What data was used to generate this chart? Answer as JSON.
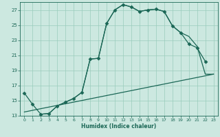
{
  "xlabel": "Humidex (Indice chaleur)",
  "bg_color": "#cce8e0",
  "grid_color": "#99ccbb",
  "line_color": "#1a6655",
  "xlim": [
    -0.5,
    23.5
  ],
  "ylim": [
    13,
    28
  ],
  "xticks": [
    0,
    1,
    2,
    3,
    4,
    5,
    6,
    7,
    8,
    9,
    10,
    11,
    12,
    13,
    14,
    15,
    16,
    17,
    18,
    19,
    20,
    21,
    22,
    23
  ],
  "yticks": [
    13,
    15,
    17,
    19,
    21,
    23,
    25,
    27
  ],
  "series_main": {
    "x": [
      0,
      1,
      2,
      3,
      4,
      5,
      6,
      7,
      8,
      9,
      10,
      11,
      12,
      13,
      14,
      15,
      16,
      17,
      18,
      19,
      20,
      21,
      22,
      23
    ],
    "y": [
      16.0,
      14.5,
      13.2,
      13.3,
      14.3,
      14.8,
      15.3,
      16.1,
      20.5,
      20.6,
      25.2,
      27.0,
      27.7,
      27.4,
      26.8,
      27.0,
      27.1,
      26.8,
      24.9,
      24.0,
      22.5,
      22.0,
      20.2,
      null
    ]
  },
  "series_straight": {
    "x": [
      0,
      23
    ],
    "y": [
      13.5,
      18.5
    ]
  },
  "series_third": {
    "x": [
      2,
      3,
      4,
      5,
      6,
      7,
      8,
      9,
      10,
      11,
      12,
      13,
      14,
      15,
      16,
      17,
      18,
      19,
      20,
      21,
      22,
      23
    ],
    "y": [
      13.2,
      13.3,
      14.3,
      14.8,
      15.3,
      16.1,
      20.5,
      20.6,
      25.2,
      27.0,
      27.7,
      27.4,
      26.8,
      27.0,
      27.1,
      26.8,
      24.9,
      24.0,
      23.5,
      22.2,
      18.5,
      18.5
    ]
  }
}
